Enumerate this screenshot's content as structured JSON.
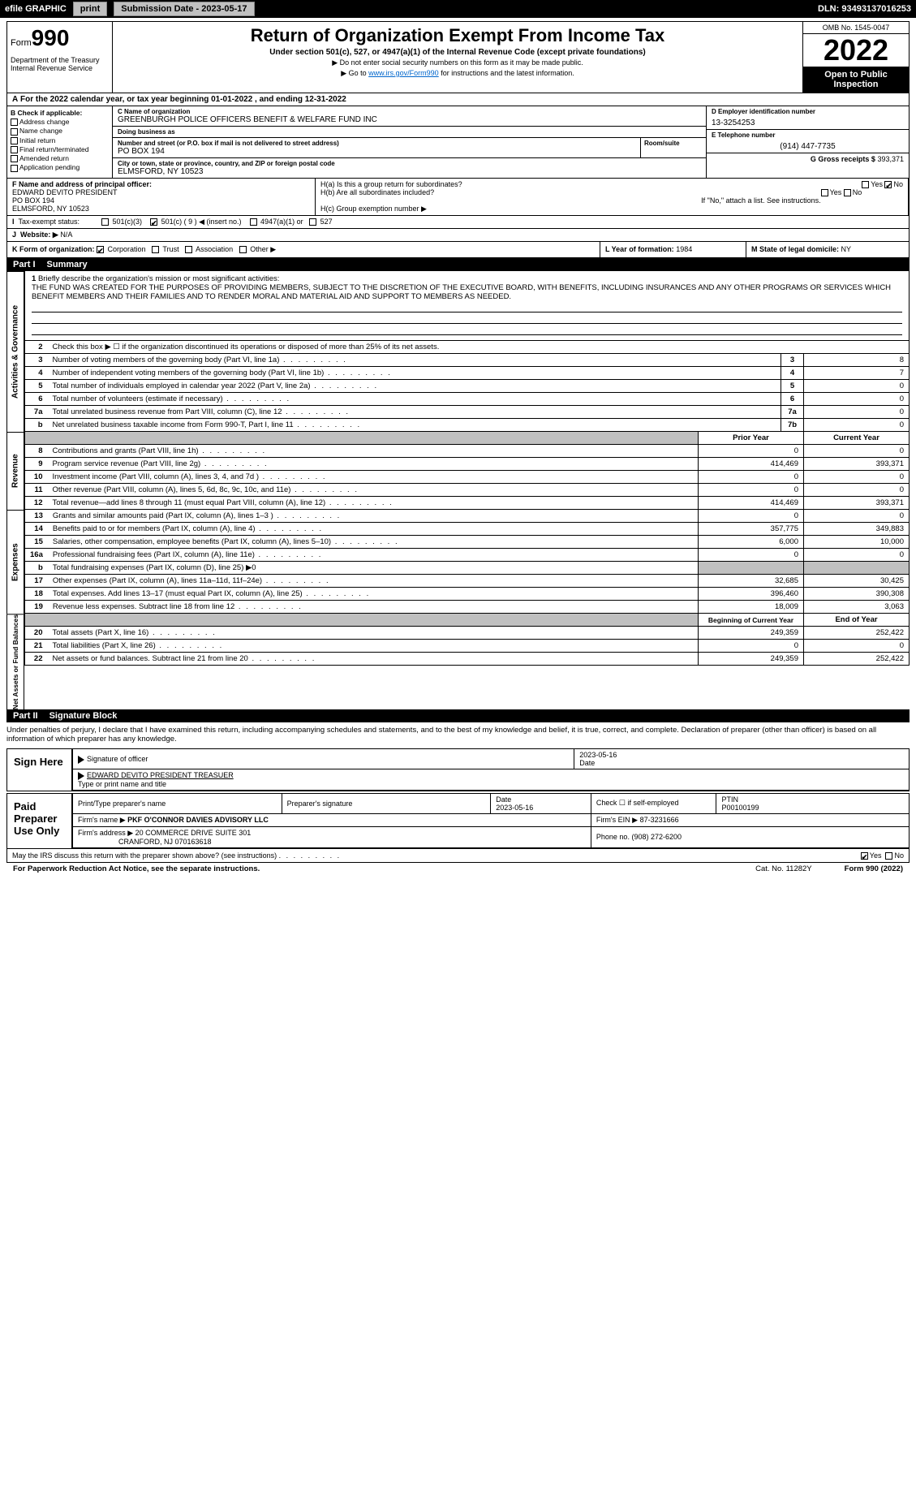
{
  "topbar": {
    "efile": "efile GRAPHIC",
    "print": "print",
    "submission": "Submission Date - 2023-05-17",
    "dln": "DLN: 93493137016253"
  },
  "header": {
    "form_label": "Form",
    "form_number": "990",
    "title": "Return of Organization Exempt From Income Tax",
    "subtitle": "Under section 501(c), 527, or 4947(a)(1) of the Internal Revenue Code (except private foundations)",
    "note1": "▶ Do not enter social security numbers on this form as it may be made public.",
    "note2": "▶ Go to www.irs.gov/Form990 for instructions and the latest information.",
    "link": "www.irs.gov/Form990",
    "dept": "Department of the Treasury\nInternal Revenue Service",
    "omb": "OMB No. 1545-0047",
    "year": "2022",
    "inspect": "Open to Public Inspection"
  },
  "lineA": "For the 2022 calendar year, or tax year beginning 01-01-2022    , and ending 12-31-2022",
  "boxB": {
    "label": "B Check if applicable:",
    "opts": [
      "Address change",
      "Name change",
      "Initial return",
      "Final return/terminated",
      "Amended return",
      "Application pending"
    ]
  },
  "boxC": {
    "name_label": "C Name of organization",
    "name": "GREENBURGH POLICE OFFICERS BENEFIT & WELFARE FUND INC",
    "dba_label": "Doing business as",
    "dba": "",
    "addr_label": "Number and street (or P.O. box if mail is not delivered to street address)",
    "room_label": "Room/suite",
    "addr": "PO BOX 194",
    "city_label": "City or town, state or province, country, and ZIP or foreign postal code",
    "city": "ELMSFORD, NY  10523"
  },
  "boxD": {
    "label": "D Employer identification number",
    "val": "13-3254253"
  },
  "boxE": {
    "label": "E Telephone number",
    "val": "(914) 447-7735"
  },
  "boxG": {
    "label": "G Gross receipts $",
    "val": "393,371"
  },
  "boxF": {
    "label": "F  Name and address of principal officer:",
    "name": "EDWARD DEVITO PRESIDENT",
    "addr1": "PO BOX 194",
    "addr2": "ELMSFORD, NY  10523"
  },
  "boxH": {
    "a": "H(a)  Is this a group return for subordinates?",
    "b": "H(b)  Are all subordinates included?",
    "b_note": "If \"No,\" attach a list. See instructions.",
    "c": "H(c)  Group exemption number ▶"
  },
  "boxI": {
    "label": "Tax-exempt status:",
    "opts": [
      "501(c)(3)",
      "501(c) ( 9 ) ◀ (insert no.)",
      "4947(a)(1) or",
      "527"
    ]
  },
  "boxJ": {
    "label": "Website: ▶",
    "val": "N/A"
  },
  "boxK": {
    "label": "K Form of organization:",
    "opts": [
      "Corporation",
      "Trust",
      "Association",
      "Other ▶"
    ]
  },
  "boxL": {
    "label": "L Year of formation:",
    "val": "1984"
  },
  "boxM": {
    "label": "M State of legal domicile:",
    "val": "NY"
  },
  "part1": {
    "num": "Part I",
    "title": "Summary"
  },
  "mission": {
    "num": "1",
    "label": "Briefly describe the organization's mission or most significant activities:",
    "text": "THE FUND WAS CREATED FOR THE PURPOSES OF PROVIDING MEMBERS, SUBJECT TO THE DISCRETION OF THE EXECUTIVE BOARD, WITH BENEFITS, INCLUDING INSURANCES AND ANY OTHER PROGRAMS OR SERVICES WHICH BENEFIT MEMBERS AND THEIR FAMILIES AND TO RENDER MORAL AND MATERIAL AID AND SUPPORT TO MEMBERS AS NEEDED."
  },
  "sidelabels": {
    "gov": "Activities & Governance",
    "rev": "Revenue",
    "exp": "Expenses",
    "net": "Net Assets or Fund Balances"
  },
  "gov_lines": [
    {
      "n": "2",
      "d": "Check this box ▶ ☐  if the organization discontinued its operations or disposed of more than 25% of its net assets."
    },
    {
      "n": "3",
      "d": "Number of voting members of the governing body (Part VI, line 1a)",
      "box": "3",
      "v": "8"
    },
    {
      "n": "4",
      "d": "Number of independent voting members of the governing body (Part VI, line 1b)",
      "box": "4",
      "v": "7"
    },
    {
      "n": "5",
      "d": "Total number of individuals employed in calendar year 2022 (Part V, line 2a)",
      "box": "5",
      "v": "0"
    },
    {
      "n": "6",
      "d": "Total number of volunteers (estimate if necessary)",
      "box": "6",
      "v": "0"
    },
    {
      "n": "7a",
      "d": "Total unrelated business revenue from Part VIII, column (C), line 12",
      "box": "7a",
      "v": "0"
    },
    {
      "n": "b",
      "d": "Net unrelated business taxable income from Form 990-T, Part I, line 11",
      "box": "7b",
      "v": "0"
    }
  ],
  "col_hdr": {
    "prior": "Prior Year",
    "current": "Current Year"
  },
  "rev_lines": [
    {
      "n": "8",
      "d": "Contributions and grants (Part VIII, line 1h)",
      "p": "0",
      "c": "0"
    },
    {
      "n": "9",
      "d": "Program service revenue (Part VIII, line 2g)",
      "p": "414,469",
      "c": "393,371"
    },
    {
      "n": "10",
      "d": "Investment income (Part VIII, column (A), lines 3, 4, and 7d )",
      "p": "0",
      "c": "0"
    },
    {
      "n": "11",
      "d": "Other revenue (Part VIII, column (A), lines 5, 6d, 8c, 9c, 10c, and 11e)",
      "p": "0",
      "c": "0"
    },
    {
      "n": "12",
      "d": "Total revenue—add lines 8 through 11 (must equal Part VIII, column (A), line 12)",
      "p": "414,469",
      "c": "393,371"
    }
  ],
  "exp_lines": [
    {
      "n": "13",
      "d": "Grants and similar amounts paid (Part IX, column (A), lines 1–3 )",
      "p": "0",
      "c": "0"
    },
    {
      "n": "14",
      "d": "Benefits paid to or for members (Part IX, column (A), line 4)",
      "p": "357,775",
      "c": "349,883"
    },
    {
      "n": "15",
      "d": "Salaries, other compensation, employee benefits (Part IX, column (A), lines 5–10)",
      "p": "6,000",
      "c": "10,000"
    },
    {
      "n": "16a",
      "d": "Professional fundraising fees (Part IX, column (A), line 11e)",
      "p": "0",
      "c": "0"
    },
    {
      "n": "b",
      "d": "Total fundraising expenses (Part IX, column (D), line 25) ▶0",
      "shade": true
    },
    {
      "n": "17",
      "d": "Other expenses (Part IX, column (A), lines 11a–11d, 11f–24e)",
      "p": "32,685",
      "c": "30,425"
    },
    {
      "n": "18",
      "d": "Total expenses. Add lines 13–17 (must equal Part IX, column (A), line 25)",
      "p": "396,460",
      "c": "390,308"
    },
    {
      "n": "19",
      "d": "Revenue less expenses. Subtract line 18 from line 12",
      "p": "18,009",
      "c": "3,063"
    }
  ],
  "net_hdr": {
    "begin": "Beginning of Current Year",
    "end": "End of Year"
  },
  "net_lines": [
    {
      "n": "20",
      "d": "Total assets (Part X, line 16)",
      "p": "249,359",
      "c": "252,422"
    },
    {
      "n": "21",
      "d": "Total liabilities (Part X, line 26)",
      "p": "0",
      "c": "0"
    },
    {
      "n": "22",
      "d": "Net assets or fund balances. Subtract line 21 from line 20",
      "p": "249,359",
      "c": "252,422"
    }
  ],
  "part2": {
    "num": "Part II",
    "title": "Signature Block"
  },
  "sig": {
    "decl": "Under penalties of perjury, I declare that I have examined this return, including accompanying schedules and statements, and to the best of my knowledge and belief, it is true, correct, and complete. Declaration of preparer (other than officer) is based on all information of which preparer has any knowledge.",
    "sign_here": "Sign Here",
    "sig_officer": "Signature of officer",
    "date": "Date",
    "date_val": "2023-05-16",
    "name_title": "EDWARD DEVITO PRESIDENT  TREASUER",
    "type_name": "Type or print name and title"
  },
  "paid": {
    "label": "Paid Preparer Use Only",
    "hdr": [
      "Print/Type preparer's name",
      "Preparer's signature",
      "Date",
      "Check ☐ if self-employed",
      "PTIN"
    ],
    "date": "2023-05-16",
    "ptin": "P00100199",
    "firm_name_label": "Firm's name    ▶",
    "firm_name": "PKF O'CONNOR DAVIES ADVISORY LLC",
    "firm_ein_label": "Firm's EIN ▶",
    "firm_ein": "87-3231666",
    "firm_addr_label": "Firm's address ▶",
    "firm_addr": "20 COMMERCE DRIVE SUITE 301",
    "firm_city": "CRANFORD, NJ  070163618",
    "phone_label": "Phone no.",
    "phone": "(908) 272-6200"
  },
  "discuss": "May the IRS discuss this return with the preparer shown above? (see instructions)",
  "footer": {
    "pra": "For Paperwork Reduction Act Notice, see the separate instructions.",
    "cat": "Cat. No. 11282Y",
    "form": "Form 990 (2022)"
  }
}
